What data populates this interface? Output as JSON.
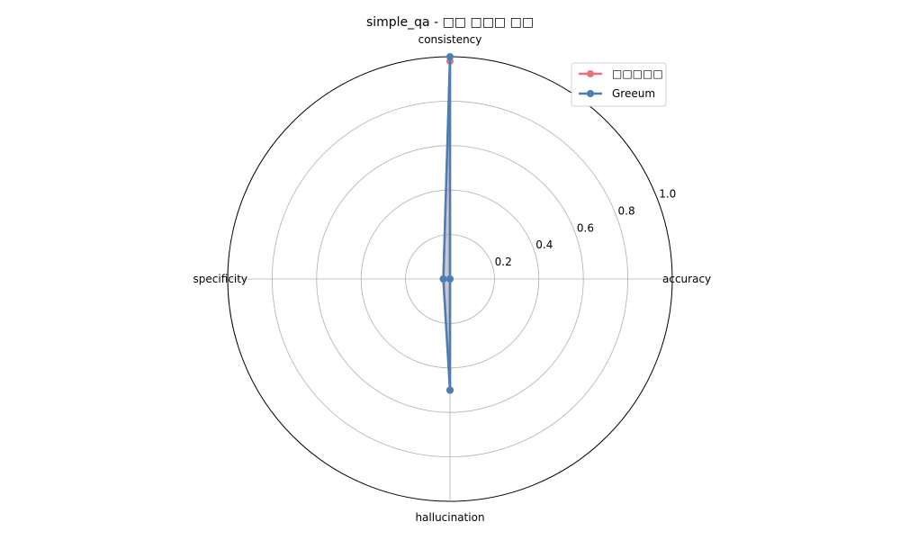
{
  "chart_data": {
    "type": "radar",
    "title": "simple_qa - □□ □□□ □□",
    "axes": [
      "accuracy",
      "consistency",
      "specificity",
      "hallucination"
    ],
    "rlim": [
      0,
      1.0
    ],
    "ticks": [
      0.2,
      0.4,
      0.6,
      0.8,
      1.0
    ],
    "tick_labels": [
      "0.2",
      "0.4",
      "0.6",
      "0.8",
      "1.0"
    ],
    "grid": true,
    "legend_position": "top-right",
    "series": [
      {
        "name": "□□□□□",
        "color": "#e8737f",
        "values": [
          0.0,
          0.98,
          0.03,
          0.5
        ]
      },
      {
        "name": "Greeum",
        "color": "#4a7eb5",
        "values": [
          0.0,
          1.0,
          0.03,
          0.5
        ]
      }
    ]
  }
}
